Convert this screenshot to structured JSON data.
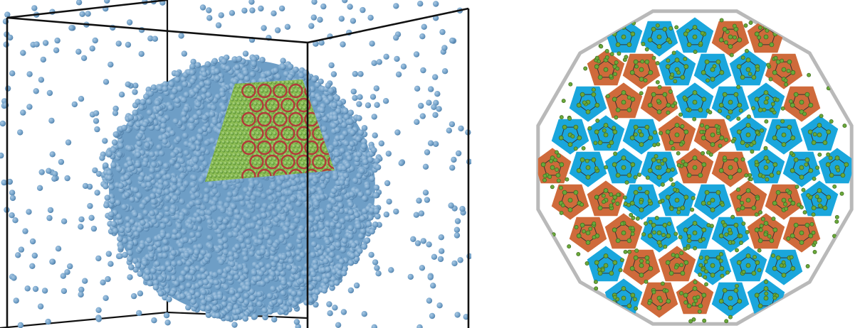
{
  "figure": {
    "left_panel": {
      "description_name": "nanoparticle-simulation-box",
      "colors": {
        "solvent_atom": "#6e9ec6",
        "solvent_atom_dark": "#4d7aa3",
        "solvent_atom_light": "#a9c8e3",
        "core_green": "#7ab648",
        "core_green_dark": "#4f8a2a",
        "bond_red": "#b23a3a",
        "box_edge": "#111111"
      }
    },
    "right_panel": {
      "description_name": "quasicrystal-tiling",
      "colors": {
        "outline": "#b9b9b9",
        "pentagon_blue": "#1aa6dc",
        "pentagon_orange": "#cf6a3b",
        "node_green": "#6aa83a",
        "node_green_dark": "#3e6b1f",
        "bond": "#333333"
      }
    }
  }
}
